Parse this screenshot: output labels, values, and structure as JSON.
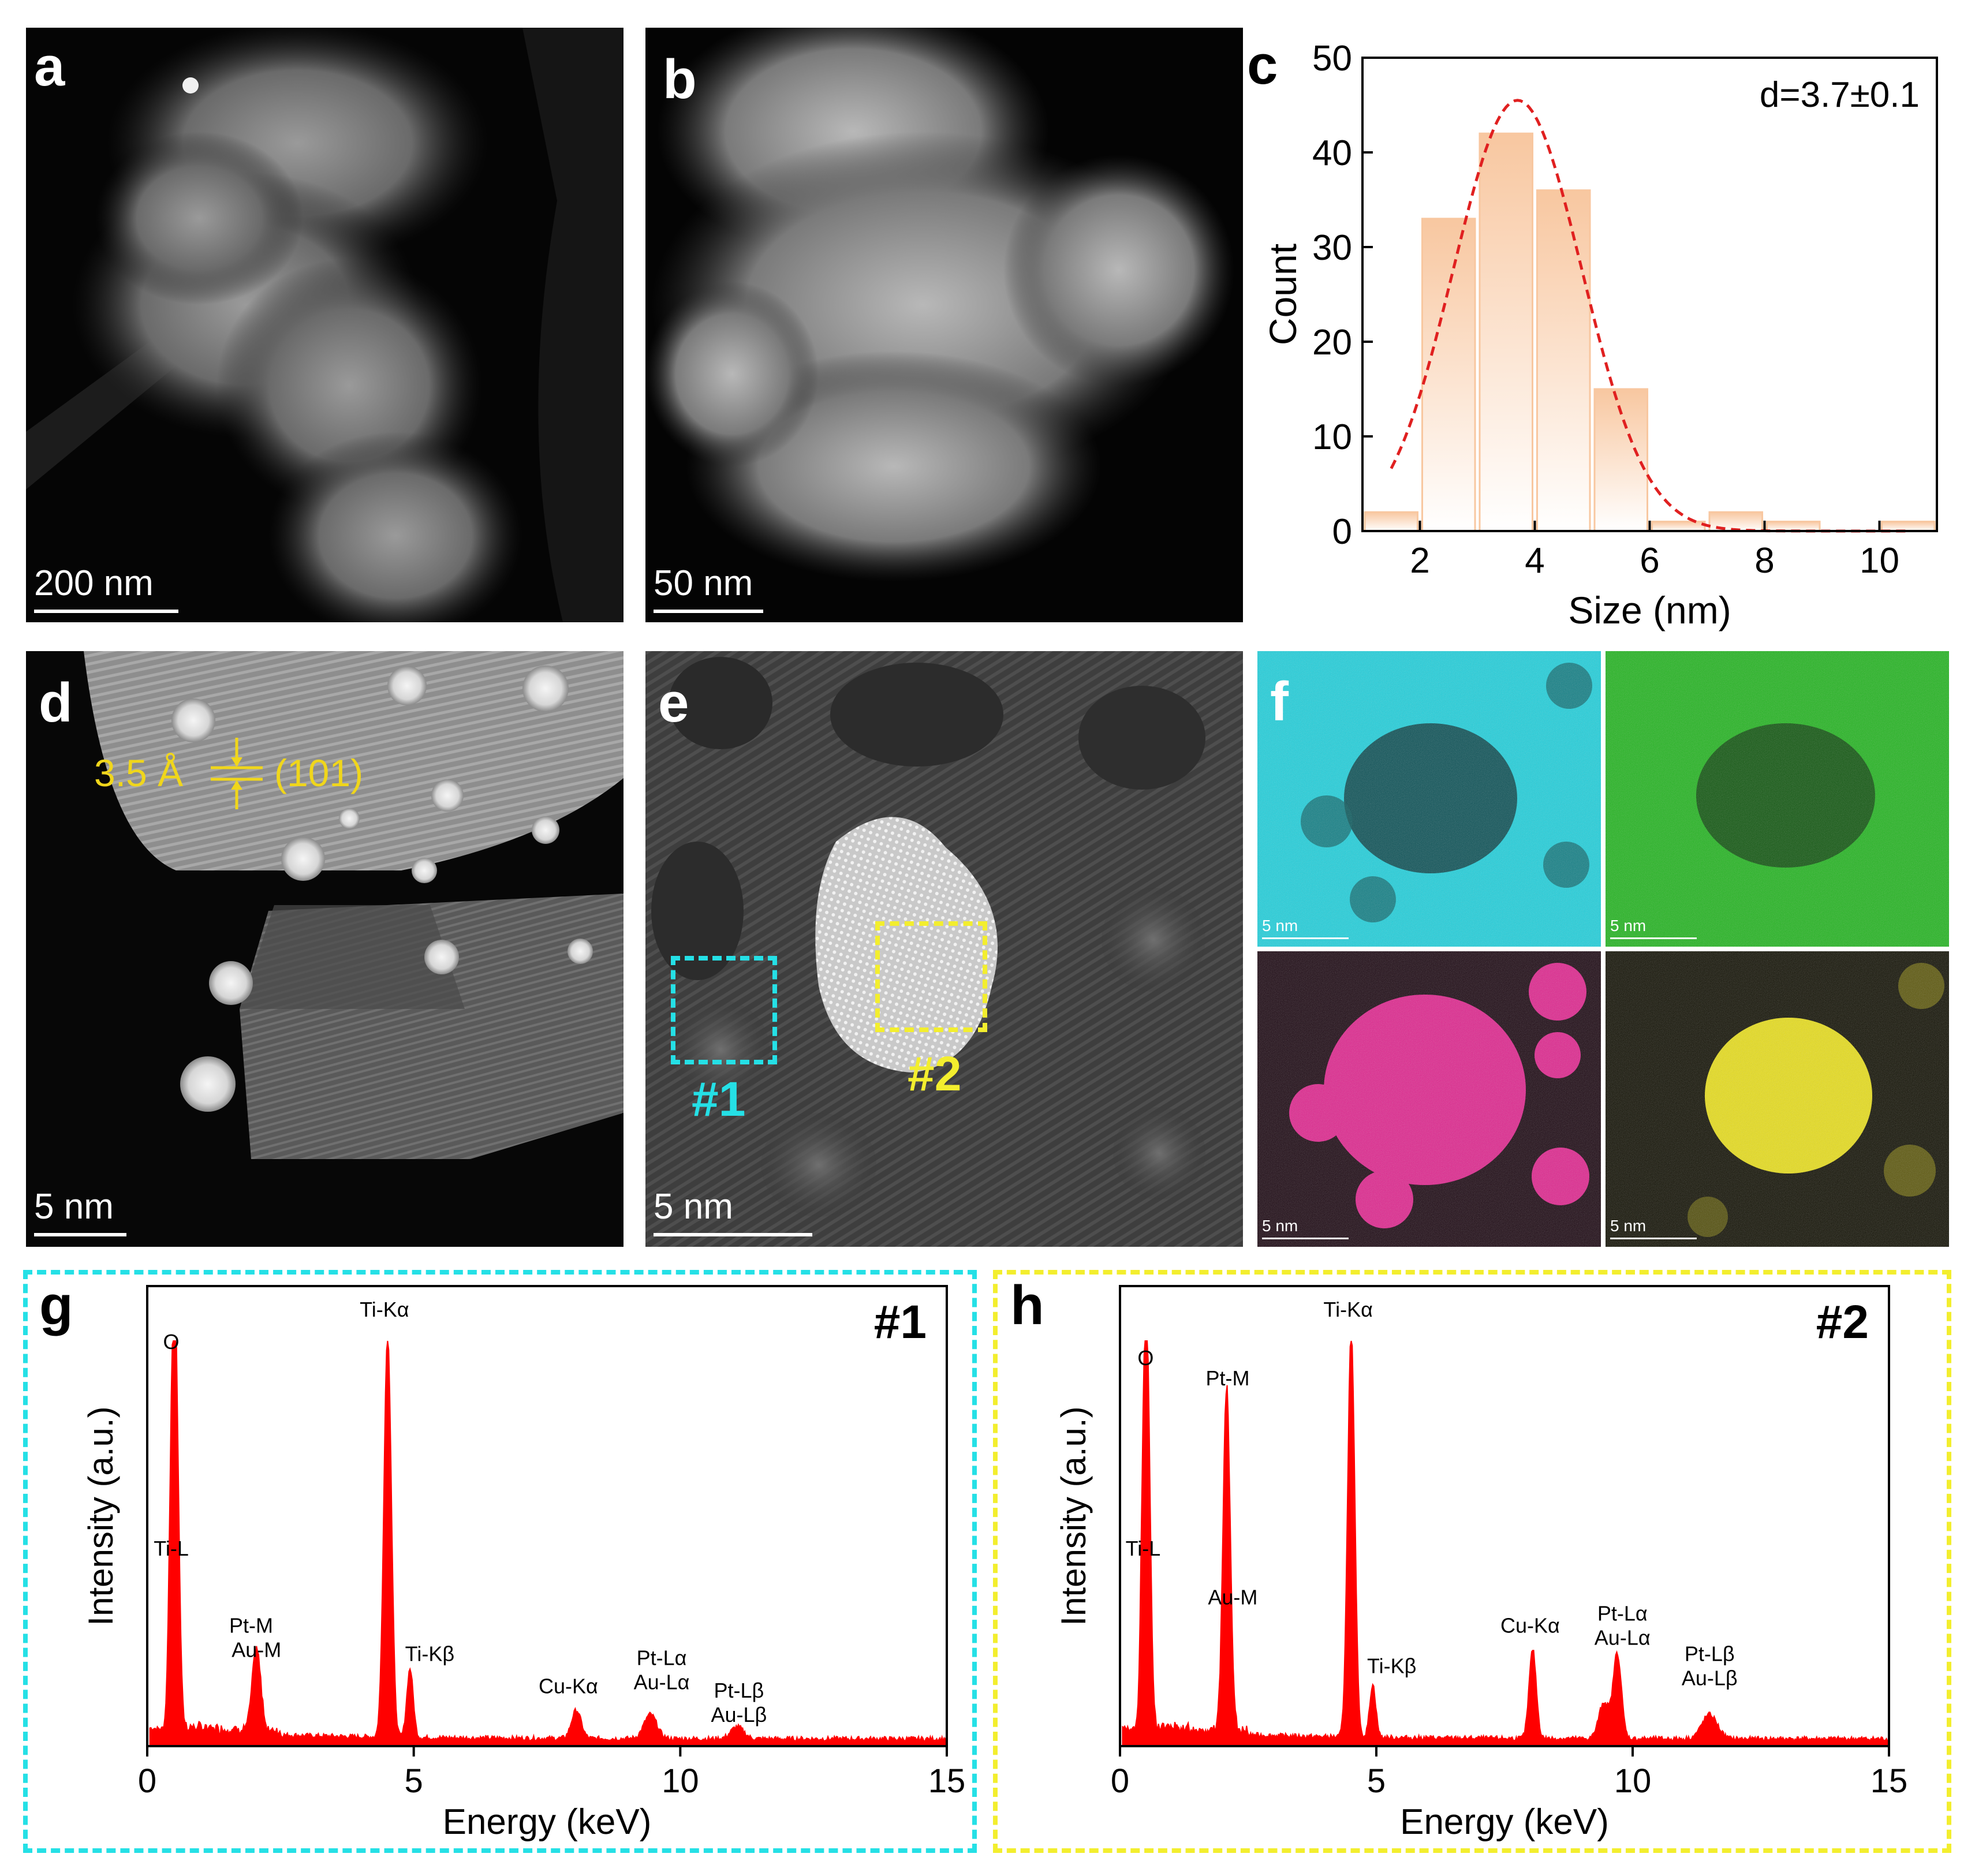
{
  "panel_a": {
    "letter": "a",
    "scale_bar": "200 nm"
  },
  "panel_b": {
    "letter": "b",
    "scale_bar": "50 nm"
  },
  "panel_c": {
    "letter": "c"
  },
  "panel_d": {
    "letter": "d",
    "scale_bar": "5 nm",
    "spacing_label": "3.5 Å",
    "plane_label": "(101)"
  },
  "panel_e": {
    "letter": "e",
    "scale_bar": "5 nm",
    "region1_label": "#1",
    "region2_label": "#2"
  },
  "panel_f": {
    "letter": "f",
    "maps": [
      {
        "scale_bar": "5 nm",
        "color": "#1fd0dc"
      },
      {
        "scale_bar": "5 nm",
        "color": "#22b51f"
      },
      {
        "scale_bar": "5 nm",
        "color": "#e0248e"
      },
      {
        "scale_bar": "5 nm",
        "color": "#e8de1a"
      }
    ]
  },
  "panel_g": {
    "letter": "g",
    "frame_color": "#25e0e6"
  },
  "panel_h": {
    "letter": "h",
    "frame_color": "#f3ee2e"
  },
  "chart_data": [
    {
      "id": "c",
      "type": "bar",
      "x": [
        1.5,
        2.5,
        3.5,
        4.5,
        5.5,
        6.5,
        7.5,
        8.5,
        10.5
      ],
      "values": [
        2,
        33,
        42,
        36,
        15,
        1,
        2,
        1,
        1
      ],
      "bar_color": "#f8c7a0",
      "fit_curve": {
        "type": "gaussian",
        "color": "#e02020",
        "style": "dashed",
        "peak": 45.5,
        "center": 3.7,
        "sigma": 1.12
      },
      "annotation": "d=3.7±0.1",
      "xlabel": "Size (nm)",
      "ylabel": "Count",
      "xlim": [
        1,
        11
      ],
      "ylim": [
        0,
        50
      ],
      "xticks": [
        2,
        4,
        6,
        8,
        10
      ],
      "yticks": [
        0,
        10,
        20,
        30,
        40,
        50
      ],
      "grid": false
    },
    {
      "id": "g",
      "type": "line",
      "title": "#1",
      "xlabel": "Energy (keV)",
      "ylabel": "Intensity (a.u.)",
      "xlim": [
        0,
        15
      ],
      "xticks": [
        0,
        5,
        10,
        15
      ],
      "line_color": "#ff0000",
      "fill": true,
      "peaks": [
        {
          "x": 0.45,
          "height": 0.42,
          "width": 0.05
        },
        {
          "x": 0.53,
          "height": 0.92,
          "width": 0.06
        },
        {
          "x": 2.05,
          "height": 0.2,
          "width": 0.08
        },
        {
          "x": 4.51,
          "height": 1.0,
          "width": 0.07
        },
        {
          "x": 4.93,
          "height": 0.17,
          "width": 0.06
        },
        {
          "x": 8.05,
          "height": 0.07,
          "width": 0.09
        },
        {
          "x": 9.44,
          "height": 0.06,
          "width": 0.12
        },
        {
          "x": 11.07,
          "height": 0.03,
          "width": 0.12
        }
      ],
      "annotations": [
        {
          "text": "O",
          "x": 0.45,
          "y": 0.98
        },
        {
          "text": "Ti-Kα",
          "x": 4.45,
          "y": 1.06
        },
        {
          "text": "Ti-L",
          "x": 0.45,
          "y": 0.47
        },
        {
          "text": "Pt-M",
          "x": 1.95,
          "y": 0.28
        },
        {
          "text": "Au-M",
          "x": 2.05,
          "y": 0.22
        },
        {
          "text": "Ti-Kβ",
          "x": 5.3,
          "y": 0.21
        },
        {
          "text": "Cu-Kα",
          "x": 7.9,
          "y": 0.13
        },
        {
          "text": "Pt-Lα",
          "x": 9.65,
          "y": 0.2
        },
        {
          "text": "Au-Lα",
          "x": 9.65,
          "y": 0.14
        },
        {
          "text": "Pt-Lβ",
          "x": 11.1,
          "y": 0.12
        },
        {
          "text": "Au-Lβ",
          "x": 11.1,
          "y": 0.06
        }
      ]
    },
    {
      "id": "h",
      "type": "line",
      "title": "#2",
      "xlabel": "Energy (keV)",
      "ylabel": "Intensity (a.u.)",
      "xlim": [
        0,
        15
      ],
      "xticks": [
        0,
        5,
        10,
        15
      ],
      "line_color": "#ff0000",
      "fill": true,
      "peaks": [
        {
          "x": 0.45,
          "height": 0.42,
          "width": 0.05
        },
        {
          "x": 0.53,
          "height": 0.89,
          "width": 0.06
        },
        {
          "x": 2.08,
          "height": 0.85,
          "width": 0.07
        },
        {
          "x": 4.51,
          "height": 1.0,
          "width": 0.07
        },
        {
          "x": 4.93,
          "height": 0.13,
          "width": 0.06
        },
        {
          "x": 8.05,
          "height": 0.22,
          "width": 0.07
        },
        {
          "x": 9.44,
          "height": 0.09,
          "width": 0.1
        },
        {
          "x": 9.7,
          "height": 0.21,
          "width": 0.08
        },
        {
          "x": 11.5,
          "height": 0.06,
          "width": 0.15
        }
      ],
      "annotations": [
        {
          "text": "O",
          "x": 0.5,
          "y": 0.94
        },
        {
          "text": "Pt-M",
          "x": 2.1,
          "y": 0.89
        },
        {
          "text": "Ti-Kα",
          "x": 4.45,
          "y": 1.06
        },
        {
          "text": "Ti-L",
          "x": 0.45,
          "y": 0.47
        },
        {
          "text": "Au-M",
          "x": 2.2,
          "y": 0.35
        },
        {
          "text": "Ti-Kβ",
          "x": 5.3,
          "y": 0.18
        },
        {
          "text": "Cu-Kα",
          "x": 8.0,
          "y": 0.28
        },
        {
          "text": "Pt-Lα",
          "x": 9.8,
          "y": 0.31
        },
        {
          "text": "Au-Lα",
          "x": 9.8,
          "y": 0.25
        },
        {
          "text": "Pt-Lβ",
          "x": 11.5,
          "y": 0.21
        },
        {
          "text": "Au-Lβ",
          "x": 11.5,
          "y": 0.15
        }
      ]
    }
  ]
}
